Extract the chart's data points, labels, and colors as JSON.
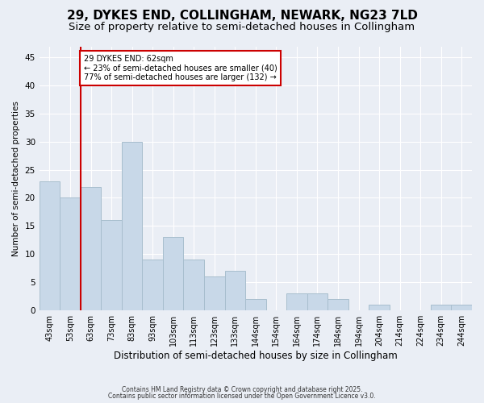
{
  "title1": "29, DYKES END, COLLINGHAM, NEWARK, NG23 7LD",
  "title2": "Size of property relative to semi-detached houses in Collingham",
  "xlabel": "Distribution of semi-detached houses by size in Collingham",
  "ylabel": "Number of semi-detached properties",
  "categories": [
    "43sqm",
    "53sqm",
    "63sqm",
    "73sqm",
    "83sqm",
    "93sqm",
    "103sqm",
    "113sqm",
    "123sqm",
    "133sqm",
    "144sqm",
    "154sqm",
    "164sqm",
    "174sqm",
    "184sqm",
    "194sqm",
    "204sqm",
    "214sqm",
    "224sqm",
    "234sqm",
    "244sqm"
  ],
  "values": [
    23,
    20,
    22,
    16,
    30,
    9,
    13,
    9,
    6,
    7,
    2,
    0,
    3,
    3,
    2,
    0,
    1,
    0,
    0,
    1,
    1
  ],
  "bar_color": "#c8d8e8",
  "bar_edge_color": "#a8bece",
  "vline_color": "#cc0000",
  "annotation_title": "29 DYKES END: 62sqm",
  "annotation_line2": "← 23% of semi-detached houses are smaller (40)",
  "annotation_line3": "77% of semi-detached houses are larger (132) →",
  "annotation_box_color": "#cc0000",
  "ylim": [
    0,
    47
  ],
  "yticks": [
    0,
    5,
    10,
    15,
    20,
    25,
    30,
    35,
    40,
    45
  ],
  "footer1": "Contains HM Land Registry data © Crown copyright and database right 2025.",
  "footer2": "Contains public sector information licensed under the Open Government Licence v3.0.",
  "bg_color": "#eaeef5",
  "plot_bg_color": "#eaeef5",
  "title1_fontsize": 11,
  "title2_fontsize": 9.5
}
